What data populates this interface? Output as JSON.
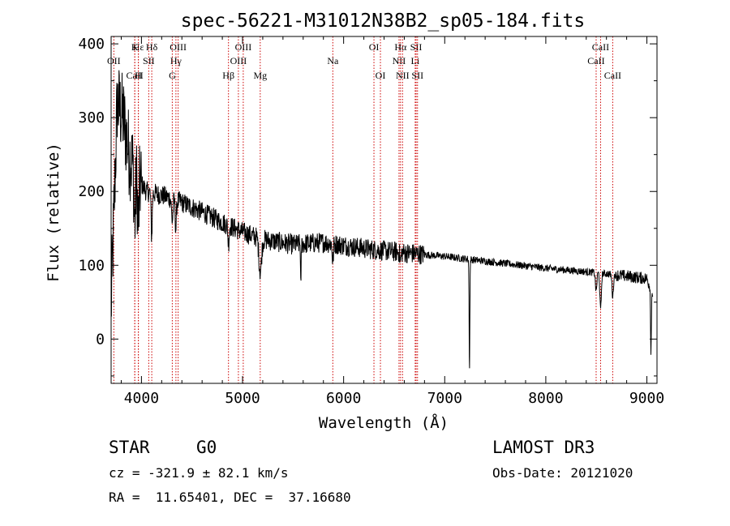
{
  "chart_data": {
    "type": "line",
    "title": "spec-56221-M31012N38B2_sp05-184.fits",
    "xlabel": "Wavelength (Å)",
    "ylabel": "Flux (relative)",
    "xlim": [
      3700,
      9100
    ],
    "ylim": [
      -60,
      410
    ],
    "xticks": [
      4000,
      5000,
      6000,
      7000,
      8000,
      9000
    ],
    "yticks": [
      0,
      100,
      200,
      300,
      400
    ],
    "continuum": [
      [
        3700,
        40
      ],
      [
        3760,
        320
      ],
      [
        3820,
        300
      ],
      [
        3880,
        250
      ],
      [
        3950,
        220
      ],
      [
        4050,
        200
      ],
      [
        4200,
        195
      ],
      [
        4400,
        185
      ],
      [
        4600,
        172
      ],
      [
        4800,
        158
      ],
      [
        5000,
        145
      ],
      [
        5200,
        135
      ],
      [
        5500,
        128
      ],
      [
        5800,
        131
      ],
      [
        6000,
        127
      ],
      [
        6300,
        121
      ],
      [
        6600,
        117
      ],
      [
        7000,
        112
      ],
      [
        7500,
        104
      ],
      [
        8000,
        96
      ],
      [
        8500,
        90
      ],
      [
        9000,
        82
      ],
      [
        9060,
        60
      ]
    ],
    "absorption_features": [
      {
        "x": 3934,
        "depth": 70,
        "width": 10
      },
      {
        "x": 3969,
        "depth": 60,
        "width": 10
      },
      {
        "x": 4101,
        "depth": 60,
        "width": 8
      },
      {
        "x": 4305,
        "depth": 30,
        "width": 10
      },
      {
        "x": 4340,
        "depth": 40,
        "width": 8
      },
      {
        "x": 4861,
        "depth": 25,
        "width": 8
      },
      {
        "x": 5175,
        "depth": 45,
        "width": 18
      },
      {
        "x": 5577,
        "depth": 65,
        "width": 4
      },
      {
        "x": 5893,
        "depth": 25,
        "width": 8
      },
      {
        "x": 6563,
        "depth": 12,
        "width": 8
      },
      {
        "x": 7245,
        "depth": 150,
        "width": 5
      },
      {
        "x": 8498,
        "depth": 25,
        "width": 10
      },
      {
        "x": 8542,
        "depth": 50,
        "width": 10
      },
      {
        "x": 8662,
        "depth": 30,
        "width": 10
      },
      {
        "x": 9040,
        "depth": 90,
        "width": 5
      }
    ],
    "noise_amplitude": {
      "blue": 60,
      "mid": 14,
      "red": 5
    },
    "line_markers": [
      {
        "label": "Hε",
        "x": 3970,
        "row": 0
      },
      {
        "label": "OII",
        "x": 3727,
        "row": 1
      },
      {
        "label": "CaII",
        "x": 3934,
        "row": 2
      },
      {
        "label": "K",
        "x": 3934,
        "row": 0
      },
      {
        "label": "H",
        "x": 3969,
        "row": 2
      },
      {
        "label": "Hδ",
        "x": 4102,
        "row": 0
      },
      {
        "label": "SII",
        "x": 4072,
        "row": 1
      },
      {
        "label": "Hγ",
        "x": 4341,
        "row": 1
      },
      {
        "label": "G",
        "x": 4305,
        "row": 2
      },
      {
        "label": "OIII",
        "x": 4363,
        "row": 0
      },
      {
        "label": "Hβ",
        "x": 4861,
        "row": 2
      },
      {
        "label": "OIII",
        "x": 4959,
        "row": 1
      },
      {
        "label": "OIII",
        "x": 5007,
        "row": 0
      },
      {
        "label": "Mg",
        "x": 5175,
        "row": 2
      },
      {
        "label": "Na",
        "x": 5893,
        "row": 1
      },
      {
        "label": "OI",
        "x": 6300,
        "row": 0
      },
      {
        "label": "OI",
        "x": 6364,
        "row": 2
      },
      {
        "label": "NII",
        "x": 6548,
        "row": 1
      },
      {
        "label": "Hα",
        "x": 6563,
        "row": 0
      },
      {
        "label": "NII",
        "x": 6583,
        "row": 2
      },
      {
        "label": "Li",
        "x": 6708,
        "row": 1
      },
      {
        "label": "SII",
        "x": 6717,
        "row": 0
      },
      {
        "label": "SII",
        "x": 6731,
        "row": 2
      },
      {
        "label": "CaII",
        "x": 8498,
        "row": 1
      },
      {
        "label": "CaII",
        "x": 8542,
        "row": 0
      },
      {
        "label": "CaII",
        "x": 8662,
        "row": 2
      }
    ],
    "line_color": "#000000",
    "marker_color": "#cc0000"
  },
  "info": {
    "object_class": "STAR",
    "subclass": "G0",
    "survey": "LAMOST DR3",
    "cz": "cz = -321.9 ± 82.1 km/s",
    "obs_date": "Obs-Date: 20121020",
    "coords": "RA =  11.65401, DEC =  37.16680"
  }
}
